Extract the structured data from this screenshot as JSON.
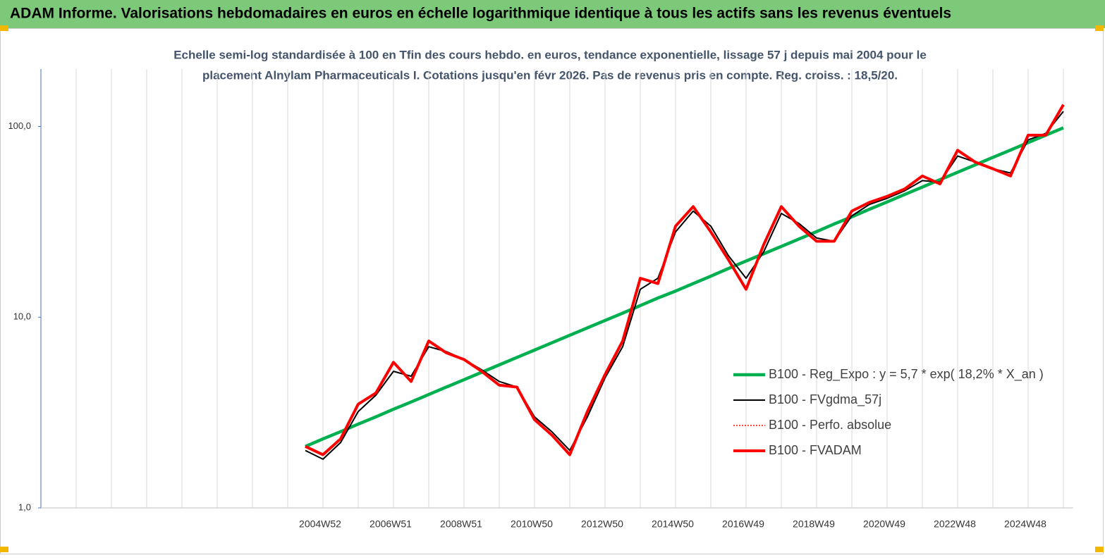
{
  "chart_data": {
    "type": "line",
    "title": "ADAM Informe. Valorisations hebdomadaires en euros en échelle logarithmique identique à tous les actifs sans les revenus éventuels",
    "subtitle": [
      "Echelle semi-log standardisée à 100 en Tfin des cours hebdo. en euros, tendance exponentielle, lissage 57 j depuis mai 2004 pour le",
      "placement Alnylam Pharmaceuticals I. Cotations jusqu'en févr 2026. Pas de revenus pris en compte. Reg. croiss. : 18,5/20."
    ],
    "log_y": true,
    "x_grid": true,
    "legend": "right",
    "ylim": [
      1,
      200
    ],
    "yticks": [
      {
        "value": 1,
        "label": "1,0"
      },
      {
        "value": 10,
        "label": "10,0"
      },
      {
        "value": 100,
        "label": "100,0"
      }
    ],
    "categories": [
      null,
      null,
      null,
      null,
      null,
      null,
      null,
      null,
      null,
      null,
      null,
      null,
      null,
      null,
      null,
      null,
      "2004W52",
      null,
      null,
      null,
      "2006W51",
      null,
      null,
      null,
      "2008W51",
      null,
      null,
      null,
      "2010W50",
      null,
      null,
      null,
      "2012W50",
      null,
      null,
      null,
      "2014W50",
      null,
      null,
      null,
      "2016W49",
      null,
      null,
      null,
      "2018W49",
      null,
      null,
      null,
      "2020W49",
      null,
      null,
      null,
      "2022W48",
      null,
      null,
      null,
      "2024W48",
      null,
      null
    ],
    "series": [
      {
        "name": "B100 - Reg_Expo : y = 5,7 * exp( 18,2% *  X_an )",
        "color": "#00b050",
        "style": "solid",
        "values": [
          null,
          null,
          null,
          null,
          null,
          null,
          null,
          null,
          null,
          null,
          null,
          null,
          null,
          null,
          null,
          2.1,
          2.3,
          2.51,
          2.75,
          3.0,
          3.29,
          3.59,
          3.93,
          4.3,
          4.7,
          5.14,
          5.62,
          6.15,
          6.72,
          7.35,
          8.04,
          8.79,
          9.61,
          10.5,
          11.5,
          12.6,
          13.7,
          15.0,
          16.4,
          18.0,
          19.7,
          21.5,
          23.5,
          25.7,
          28.1,
          30.8,
          33.6,
          36.8,
          40.2,
          44.0,
          48.1,
          52.6,
          57.5,
          62.9,
          68.8,
          75.2,
          82.3,
          90.0,
          98.4
        ]
      },
      {
        "name": "B100 - FVgdma_57j",
        "color": "#000000",
        "style": "solid",
        "values": [
          null,
          null,
          null,
          null,
          null,
          null,
          null,
          null,
          null,
          null,
          null,
          null,
          null,
          null,
          null,
          2.0,
          1.8,
          2.2,
          3.2,
          3.9,
          5.2,
          4.9,
          7.0,
          6.6,
          6.0,
          5.3,
          4.6,
          4.3,
          3.0,
          2.5,
          2.0,
          3.0,
          4.8,
          7.0,
          14,
          16,
          28,
          36,
          30,
          21,
          16,
          22,
          35,
          31,
          26,
          25,
          34,
          39,
          42,
          46,
          52,
          51,
          70,
          65,
          60,
          57,
          85,
          92,
          120
        ]
      },
      {
        "name": "B100 - Perfo. absolue",
        "color": "#ff0000",
        "style": "dotted",
        "values": [
          null,
          null,
          null,
          null,
          null,
          null,
          null,
          null,
          null,
          null,
          null,
          null,
          null,
          null,
          null,
          2.1,
          1.9,
          2.3,
          3.5,
          4.0,
          5.8,
          4.6,
          7.5,
          6.5,
          6.0,
          5.2,
          4.4,
          4.3,
          2.9,
          2.4,
          1.9,
          3.2,
          5.0,
          7.5,
          16,
          15,
          30,
          38,
          28,
          20,
          14,
          24,
          38,
          30,
          25,
          25,
          36,
          40,
          43,
          47,
          55,
          50,
          75,
          65,
          60,
          55,
          90,
          90,
          130
        ]
      },
      {
        "name": "B100 - FVADAM",
        "color": "#ff0000",
        "style": "thick",
        "values": [
          null,
          null,
          null,
          null,
          null,
          null,
          null,
          null,
          null,
          null,
          null,
          null,
          null,
          null,
          null,
          2.1,
          1.9,
          2.3,
          3.5,
          4.0,
          5.8,
          4.6,
          7.5,
          6.5,
          6.0,
          5.2,
          4.4,
          4.3,
          2.9,
          2.4,
          1.9,
          3.2,
          5.0,
          7.5,
          16,
          15,
          30,
          38,
          28,
          20,
          14,
          24,
          38,
          30,
          25,
          25,
          36,
          40,
          43,
          47,
          55,
          50,
          75,
          65,
          60,
          55,
          90,
          90,
          130
        ]
      }
    ]
  }
}
